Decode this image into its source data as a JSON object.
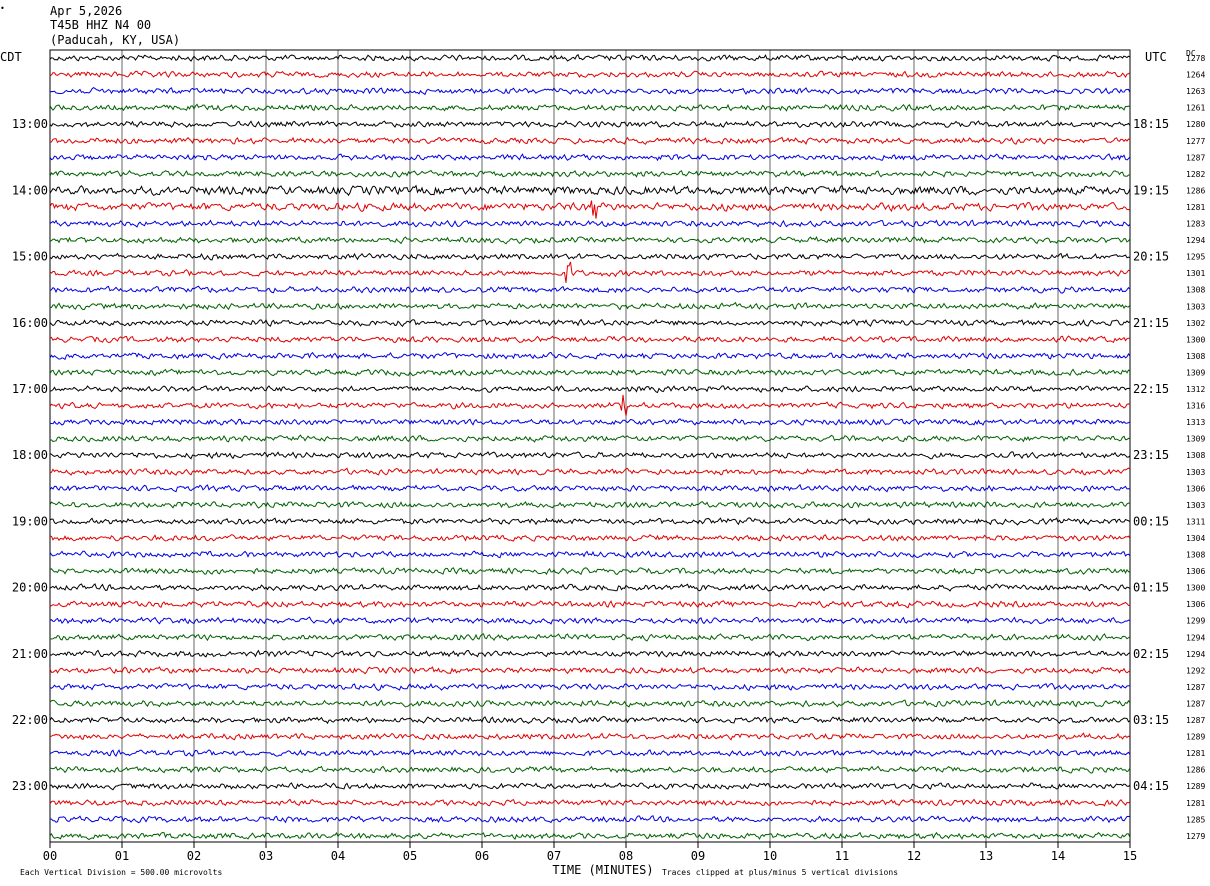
{
  "header": {
    "date": "Apr 5,2026",
    "station": "T45B HHZ N4 00",
    "location": "(Paducah, KY, USA)",
    "left_tz": "CDT",
    "right_tz": "UTC",
    "dc_label": "DC"
  },
  "footer": {
    "scale_note": "Each Vertical Division =  500.00 microvolts",
    "xlabel": "TIME (MINUTES)",
    "clip_note": "Traces clipped at plus/minus 5 vertical divisions"
  },
  "chart_data": {
    "type": "line",
    "title": "",
    "xlabel": "TIME (MINUTES)",
    "ylabel": "",
    "xlim": [
      0,
      15
    ],
    "x_ticks": [
      "00",
      "01",
      "02",
      "03",
      "04",
      "05",
      "06",
      "07",
      "08",
      "09",
      "10",
      "11",
      "12",
      "13",
      "14",
      "15"
    ],
    "grid": "vertical lines every minute",
    "trace_interval_minutes": 15,
    "trace_count": 48,
    "trace_colors": [
      "#000000",
      "#e00000",
      "#0000e0",
      "#006000"
    ],
    "left_hour_labels": [
      "13:00",
      "14:00",
      "15:00",
      "16:00",
      "17:00",
      "18:00",
      "19:00",
      "20:00",
      "21:00",
      "22:00",
      "23:00"
    ],
    "right_hour_labels": [
      "18:15",
      "19:15",
      "20:15",
      "21:15",
      "22:15",
      "23:15",
      "00:15",
      "01:15",
      "02:15",
      "03:15",
      "04:15"
    ],
    "dc_offsets": [
      1278,
      1264,
      1263,
      1261,
      1280,
      1277,
      1287,
      1282,
      1286,
      1281,
      1283,
      1294,
      1295,
      1301,
      1308,
      1303,
      1302,
      1300,
      1308,
      1309,
      1312,
      1316,
      1313,
      1309,
      1308,
      1303,
      1306,
      1303,
      1311,
      1304,
      1308,
      1306,
      1300,
      1306,
      1299,
      1294,
      1294,
      1292,
      1287,
      1287,
      1287,
      1289,
      1281,
      1286,
      1289,
      1281,
      1285,
      1279
    ]
  }
}
